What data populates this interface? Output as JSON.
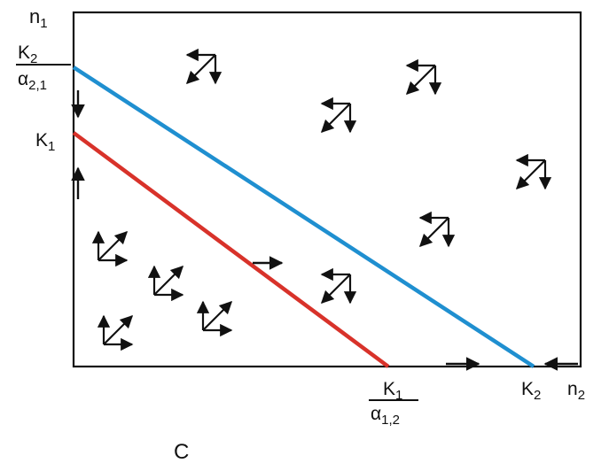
{
  "labels": {
    "n1": {
      "base": "n",
      "sub": "1"
    },
    "n2": {
      "base": "n",
      "sub": "2"
    },
    "k1_axis": {
      "base": "K",
      "sub": "1"
    },
    "k2_axis": {
      "base": "K",
      "sub": "2"
    },
    "y_intercept_blue": {
      "num_base": "K",
      "num_sub": "2",
      "den_base": "α",
      "den_sub": "2,1"
    },
    "x_intercept_red": {
      "num_base": "K",
      "num_sub": "1",
      "den_base": "α",
      "den_sub": "1,2"
    },
    "panel_letter": "C"
  },
  "colors": {
    "blue_isocline": "#1f8fd0",
    "red_isocline": "#d8322a",
    "axes": "#111111",
    "arrows": "#111111"
  },
  "icons": {
    "vector_glyph": "direction-field-arrow-cluster",
    "axis_arrow": "axis-flow-arrow"
  }
}
